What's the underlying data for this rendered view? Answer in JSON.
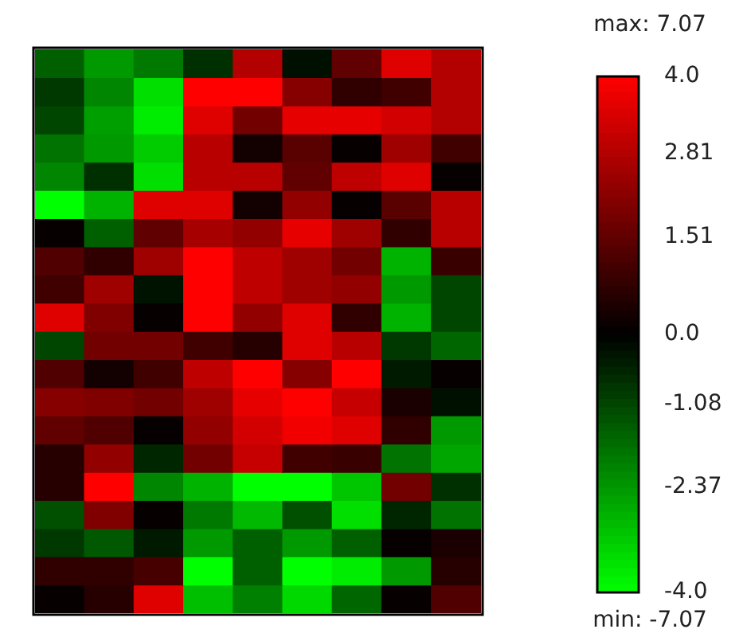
{
  "chart_data": {
    "type": "heatmap",
    "categories": [
      null,
      null,
      null,
      null,
      null,
      null,
      null,
      null,
      null
    ],
    "y_categories": [
      null,
      null,
      null,
      null,
      null,
      null,
      null,
      null,
      null,
      null,
      null,
      null,
      null,
      null,
      null,
      null,
      null,
      null,
      null,
      null
    ],
    "cells": [
      [
        -1.5,
        -2.4,
        -1.9,
        -0.75,
        2.8,
        -0.25,
        1.5,
        3.5,
        2.8
      ],
      [
        -0.9,
        -2.1,
        -3.5,
        4,
        4,
        2.1,
        0.75,
        1,
        2.8
      ],
      [
        -1.1,
        -2.5,
        -3.7,
        3.5,
        1.8,
        3.6,
        3.6,
        3.3,
        2.8
      ],
      [
        -1.8,
        -2.4,
        -3.2,
        2.9,
        0.3,
        1.4,
        0.1,
        2.5,
        1
      ],
      [
        -2.1,
        -0.75,
        -3.5,
        2.9,
        2.9,
        1.5,
        3,
        3.5,
        0.1
      ],
      [
        -4,
        -2.8,
        3.5,
        3.5,
        0.3,
        2.3,
        0.1,
        1.4,
        2.9
      ],
      [
        0.1,
        -1.5,
        1.5,
        2.6,
        2.3,
        3.6,
        2.5,
        0.75,
        2.9
      ],
      [
        1.25,
        0.75,
        2.5,
        4,
        3,
        2.5,
        1.8,
        -2.8,
        0.9
      ],
      [
        1,
        2.5,
        -0.3,
        4,
        3,
        2.5,
        2.3,
        -2.4,
        -1.1
      ],
      [
        3.5,
        2,
        0.1,
        4,
        2.3,
        3.5,
        0.75,
        -2.8,
        -1.1
      ],
      [
        -1.1,
        1.8,
        1.8,
        1,
        0.6,
        3.5,
        2.9,
        -0.9,
        -1.6
      ],
      [
        1.25,
        0.3,
        1,
        3,
        4,
        2.1,
        4,
        -0.4,
        0.1
      ],
      [
        2.1,
        2,
        1.8,
        2.5,
        3.6,
        4,
        3.1,
        0.4,
        -0.25
      ],
      [
        1.5,
        1.25,
        0.1,
        2.3,
        3.3,
        3.8,
        3.5,
        0.75,
        -2.4
      ],
      [
        0.6,
        2.3,
        -0.6,
        1.8,
        3.1,
        1,
        0.9,
        -1.8,
        -2.6
      ],
      [
        0.6,
        4,
        -2.1,
        -2.8,
        -4,
        -4,
        -3.1,
        1.8,
        -0.75
      ],
      [
        -1.25,
        2,
        0.1,
        -1.9,
        -2.9,
        -1.25,
        -3.5,
        -0.6,
        -1.8
      ],
      [
        -0.9,
        -1.4,
        -0.4,
        -2.4,
        -1.5,
        -2.4,
        -1.5,
        0.1,
        0.4
      ],
      [
        0.75,
        0.75,
        1.1,
        -4,
        -1.5,
        -4,
        -3.7,
        -2.4,
        0.6
      ],
      [
        0.1,
        0.6,
        3.5,
        -3,
        -2,
        -3.4,
        -1.6,
        0.1,
        1.25
      ]
    ],
    "clim": [
      -4.0,
      4.0
    ],
    "cticks": [
      {
        "value": 4.0,
        "label": "4.0"
      },
      2.81,
      1.51,
      {
        "value": 0.0,
        "label": "0.0"
      },
      -1.08,
      -2.37,
      {
        "value": -4.0,
        "label": "-4.0"
      }
    ],
    "tick_labels": false,
    "annotations": [
      "max: 7.07",
      "min: -7.07"
    ]
  }
}
